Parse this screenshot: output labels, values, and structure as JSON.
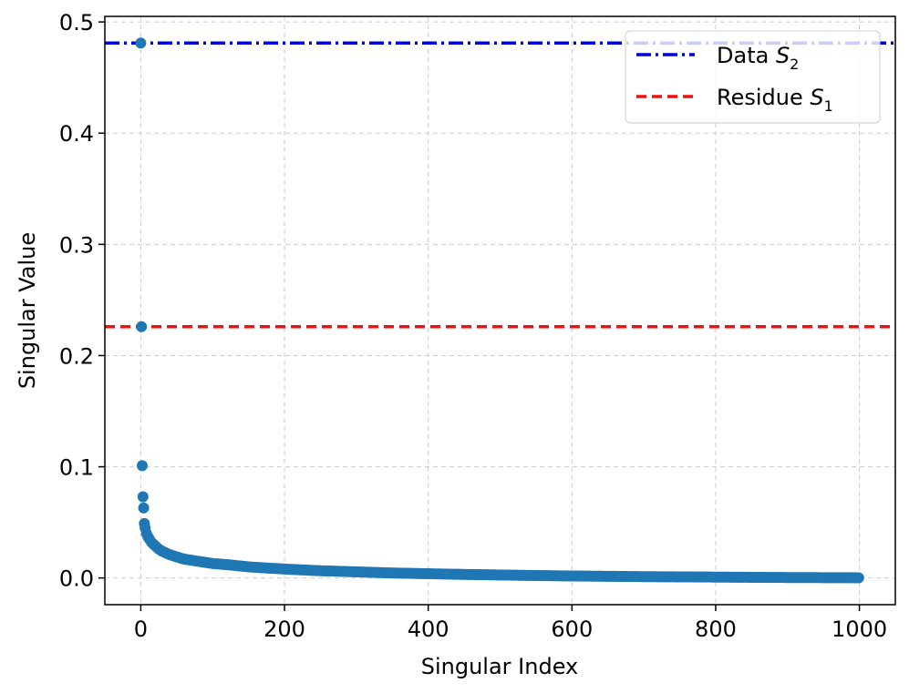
{
  "chart_data": {
    "type": "scatter",
    "xlabel": "Singular Index",
    "ylabel": "Singular Value",
    "xlim": [
      -50,
      1050
    ],
    "ylim": [
      -0.024,
      0.505
    ],
    "xticks": [
      0,
      200,
      400,
      600,
      800,
      1000
    ],
    "xtick_labels": [
      "0",
      "200",
      "400",
      "600",
      "800",
      "1000"
    ],
    "yticks": [
      0.0,
      0.1,
      0.2,
      0.3,
      0.4,
      0.5
    ],
    "ytick_labels": [
      "0.0",
      "0.1",
      "0.2",
      "0.3",
      "0.4",
      "0.5"
    ],
    "grid": true,
    "legend_position": "top-right",
    "series": [
      {
        "name": "",
        "kind": "scatter",
        "color": "#1f77b4",
        "x": [
          0,
          1,
          2,
          3,
          4,
          5,
          6,
          8,
          10,
          12,
          15,
          20,
          25,
          30,
          40,
          50,
          60,
          80,
          100,
          120,
          150,
          200,
          250,
          300,
          350,
          400,
          450,
          500,
          550,
          600,
          650,
          700,
          750,
          800,
          850,
          900,
          950,
          999
        ],
        "y": [
          0.481,
          0.226,
          0.101,
          0.073,
          0.063,
          0.049,
          0.045,
          0.04,
          0.037,
          0.035,
          0.032,
          0.029,
          0.026,
          0.024,
          0.021,
          0.019,
          0.017,
          0.015,
          0.013,
          0.012,
          0.01,
          0.008,
          0.0065,
          0.0055,
          0.0045,
          0.0038,
          0.0032,
          0.0027,
          0.0022,
          0.0018,
          0.0015,
          0.0012,
          0.001,
          0.0008,
          0.0006,
          0.0004,
          0.0003,
          0.0002
        ]
      }
    ],
    "reference_lines": [
      {
        "label": "Data S2",
        "label_main": "Data ",
        "label_var": "S",
        "label_sub": "2",
        "y": 0.481,
        "color": "#0000dd",
        "style": "dash-dot"
      },
      {
        "label": "Residue S1",
        "label_main": "Residue ",
        "label_var": "S",
        "label_sub": "1",
        "y": 0.226,
        "color": "#ee1111",
        "style": "dashed"
      }
    ]
  }
}
